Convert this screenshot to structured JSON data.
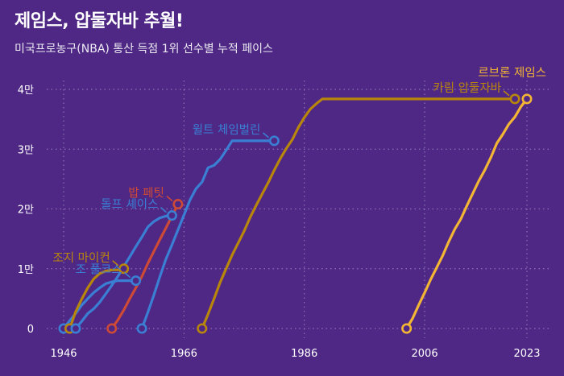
{
  "title": "제임스, 압둘자바 추월!",
  "subtitle": "미국프로농구(NBA) 통산 득점 1위 선수별 누적 페이스",
  "colors": {
    "background": "#4f2785",
    "grid": "#8b73b6",
    "axis_text": "#ffffff",
    "blue": "#3a7fd3",
    "red": "#cc4a36",
    "gold": "#b8860b",
    "james": "#f3b634"
  },
  "chart_data": {
    "type": "line",
    "title": "제임스, 압둘자바 추월!",
    "subtitle": "미국프로농구(NBA) 통산 득점 1위 선수별 누적 페이스",
    "xlabel": "",
    "ylabel": "",
    "xlim": [
      1946,
      2023
    ],
    "ylim": [
      0,
      40000
    ],
    "grid": true,
    "x_ticks": [
      1946,
      1966,
      1986,
      2006,
      2023
    ],
    "x_tick_labels": [
      "1946",
      "1966",
      "1986",
      "2006",
      "2023"
    ],
    "y_ticks": [
      0,
      10000,
      20000,
      30000,
      40000
    ],
    "y_tick_labels": [
      "0",
      "1만",
      "2만",
      "3만",
      "4만"
    ],
    "series": [
      {
        "name": "조 풀크스",
        "color": "#3a7fd3",
        "x": [
          1946,
          1947,
          1948,
          1949,
          1950,
          1951,
          1952,
          1953,
          1954,
          1955,
          1956,
          1957,
          1958
        ],
        "y": [
          0,
          1300,
          2500,
          3900,
          5000,
          6000,
          6800,
          7500,
          7800,
          8000,
          8000,
          8000,
          8000
        ],
        "end_label_side": "left"
      },
      {
        "name": "조지 마이컨",
        "color": "#b8860b",
        "x": [
          1947,
          1948,
          1949,
          1950,
          1951,
          1952,
          1953,
          1954,
          1955,
          1956
        ],
        "y": [
          0,
          2800,
          4900,
          6800,
          8300,
          9200,
          9600,
          9800,
          9800,
          10000
        ],
        "end_label_side": "left"
      },
      {
        "name": "돌프 셰이스",
        "color": "#3a7fd3",
        "x": [
          1948,
          1949,
          1950,
          1951,
          1952,
          1953,
          1954,
          1955,
          1956,
          1957,
          1958,
          1959,
          1960,
          1961,
          1962,
          1963,
          1964
        ],
        "y": [
          0,
          1200,
          2500,
          3300,
          4400,
          5800,
          7200,
          8700,
          10400,
          12000,
          13700,
          15300,
          17000,
          17900,
          18500,
          18800,
          18900
        ],
        "end_label_side": "left"
      },
      {
        "name": "밥 페팃",
        "color": "#cc4a36",
        "x": [
          1954,
          1955,
          1956,
          1957,
          1958,
          1959,
          1960,
          1961,
          1962,
          1963,
          1964,
          1965
        ],
        "y": [
          0,
          1400,
          3100,
          5000,
          6800,
          8700,
          10900,
          12900,
          14900,
          16800,
          18800,
          20800
        ],
        "end_label_side": "left"
      },
      {
        "name": "윌트 체임벌린",
        "color": "#3a7fd3",
        "x": [
          1959,
          1960,
          1961,
          1962,
          1963,
          1964,
          1965,
          1966,
          1967,
          1968,
          1969,
          1970,
          1971,
          1972,
          1973,
          1974,
          1975,
          1976,
          1977,
          1978,
          1979,
          1980,
          1981
        ],
        "y": [
          0,
          2700,
          5600,
          8700,
          11600,
          14000,
          16500,
          19000,
          21500,
          23400,
          24500,
          26900,
          27300,
          28300,
          29800,
          31400,
          31400,
          31400,
          31400,
          31400,
          31400,
          31400,
          31400
        ],
        "end_label_side": "left"
      },
      {
        "name": "카림 압둘자바",
        "color": "#b8860b",
        "x": [
          1969,
          1970,
          1971,
          1972,
          1973,
          1974,
          1975,
          1976,
          1977,
          1978,
          1979,
          1980,
          1981,
          1982,
          1983,
          1984,
          1985,
          1986,
          1987,
          1988,
          1989,
          2021
        ],
        "y": [
          0,
          2400,
          5000,
          7700,
          10000,
          12300,
          14300,
          16300,
          18600,
          20600,
          22500,
          24400,
          26500,
          28400,
          30100,
          31600,
          33600,
          35300,
          36700,
          37600,
          38400,
          38400
        ],
        "end_label_side": "left"
      },
      {
        "name": "르브론 제임스",
        "color": "#f3b634",
        "x": [
          2003,
          2004,
          2005,
          2006,
          2007,
          2008,
          2009,
          2010,
          2011,
          2012,
          2013,
          2014,
          2015,
          2016,
          2017,
          2018,
          2019,
          2020,
          2021,
          2022,
          2023
        ],
        "y": [
          0,
          1700,
          3900,
          6000,
          8200,
          10200,
          12200,
          14500,
          16600,
          18300,
          20500,
          22600,
          24700,
          26500,
          28600,
          31000,
          32500,
          34200,
          35400,
          37100,
          38400
        ],
        "end_label_side": "above"
      }
    ]
  }
}
